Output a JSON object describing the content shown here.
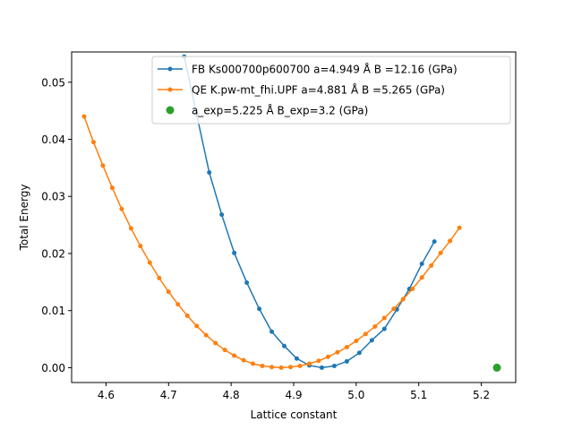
{
  "chart_data": {
    "type": "line",
    "xlabel": "Lattice constant",
    "ylabel": "Total Energy",
    "xlim": [
      4.545,
      5.255
    ],
    "ylim": [
      -0.0026,
      0.0553
    ],
    "xticks": [
      4.6,
      4.7,
      4.8,
      4.9,
      5.0,
      5.1,
      5.2
    ],
    "xtick_labels": [
      "4.6",
      "4.7",
      "4.8",
      "4.9",
      "5.0",
      "5.1",
      "5.2"
    ],
    "yticks": [
      0.0,
      0.01,
      0.02,
      0.03,
      0.04,
      0.05
    ],
    "ytick_labels": [
      "0.00",
      "0.01",
      "0.02",
      "0.03",
      "0.04",
      "0.05"
    ],
    "grid": false,
    "legend_position": "top-right",
    "series": [
      {
        "name": "FB Ks000700p600700 a=4.949 Å B =12.16 (GPa)",
        "color": "#1f77b4",
        "marker": "dot",
        "x": [
          4.725,
          4.745,
          4.765,
          4.785,
          4.805,
          4.825,
          4.845,
          4.865,
          4.885,
          4.905,
          4.925,
          4.945,
          4.965,
          4.985,
          5.005,
          5.025,
          5.045,
          5.065,
          5.085,
          5.105,
          5.125
        ],
        "y": [
          0.0545,
          0.0443,
          0.0342,
          0.0268,
          0.0201,
          0.0149,
          0.0103,
          0.0063,
          0.0038,
          0.0016,
          0.0004,
          0.0,
          0.0003,
          0.0011,
          0.0026,
          0.0048,
          0.0068,
          0.0102,
          0.0138,
          0.0182,
          0.0221
        ]
      },
      {
        "name": "QE K.pw-mt_fhi.UPF a=4.881 Å B =5.265 (GPa)",
        "color": "#ff7f0e",
        "marker": "dot",
        "x": [
          4.565,
          4.58,
          4.595,
          4.61,
          4.625,
          4.64,
          4.655,
          4.67,
          4.685,
          4.7,
          4.715,
          4.73,
          4.745,
          4.76,
          4.775,
          4.79,
          4.805,
          4.82,
          4.835,
          4.85,
          4.865,
          4.88,
          4.895,
          4.91,
          4.925,
          4.94,
          4.955,
          4.97,
          4.985,
          5.0,
          5.015,
          5.03,
          5.045,
          5.06,
          5.075,
          5.09,
          5.105,
          5.12,
          5.135,
          5.15,
          5.165
        ],
        "y": [
          0.044,
          0.0395,
          0.0354,
          0.0315,
          0.0278,
          0.0244,
          0.0213,
          0.0184,
          0.0157,
          0.0133,
          0.0111,
          0.0091,
          0.0073,
          0.0057,
          0.0043,
          0.0031,
          0.0021,
          0.0013,
          0.0007,
          0.0003,
          0.0001,
          0.0,
          0.0001,
          0.0003,
          0.0007,
          0.0012,
          0.0019,
          0.0027,
          0.0036,
          0.0047,
          0.0059,
          0.0072,
          0.0087,
          0.0103,
          0.012,
          0.0138,
          0.0158,
          0.0179,
          0.0201,
          0.0222,
          0.0245
        ]
      },
      {
        "name": "a_exp=5.225 Å  B_exp=3.2 (GPa)",
        "color": "#2ca02c",
        "marker": "big-dot",
        "no_line": true,
        "x": [
          5.225
        ],
        "y": [
          0.0
        ]
      }
    ]
  }
}
